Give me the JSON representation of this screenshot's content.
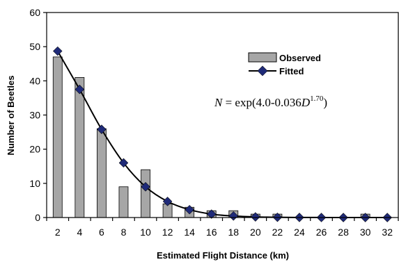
{
  "chart_data": {
    "type": "bar",
    "title": "",
    "xlabel": "Estimated Flight Distance (km)",
    "ylabel": "Number of Beetles",
    "ylim": [
      0,
      60
    ],
    "yticks": [
      0,
      10,
      20,
      30,
      40,
      50,
      60
    ],
    "categories": [
      "2",
      "4",
      "6",
      "8",
      "10",
      "12",
      "14",
      "16",
      "18",
      "20",
      "22",
      "24",
      "26",
      "28",
      "30",
      "32"
    ],
    "x": [
      2,
      4,
      6,
      8,
      10,
      12,
      14,
      16,
      18,
      20,
      22,
      24,
      26,
      28,
      30,
      32
    ],
    "series": [
      {
        "name": "Observed",
        "type": "bar",
        "color": "#a6a6a6",
        "values": [
          47,
          41,
          26,
          9,
          14,
          4,
          3,
          2,
          2,
          1,
          1,
          0,
          0,
          0,
          1,
          0
        ]
      },
      {
        "name": "Fitted",
        "type": "line",
        "color": "#000000",
        "marker_color": "#1f2a78",
        "values": [
          48.7,
          37.5,
          25.8,
          16.0,
          9.0,
          4.7,
          2.3,
          1.0,
          0.45,
          0.18,
          0.07,
          0.03,
          0.01,
          0.0,
          0.0,
          0.0
        ]
      }
    ],
    "legend_position": "top-right",
    "grid": false,
    "annotation": {
      "prefix": "N",
      "body": " = exp(4.0-0.036",
      "var": "D",
      "exponent": "1.70",
      "suffix": ")"
    }
  }
}
